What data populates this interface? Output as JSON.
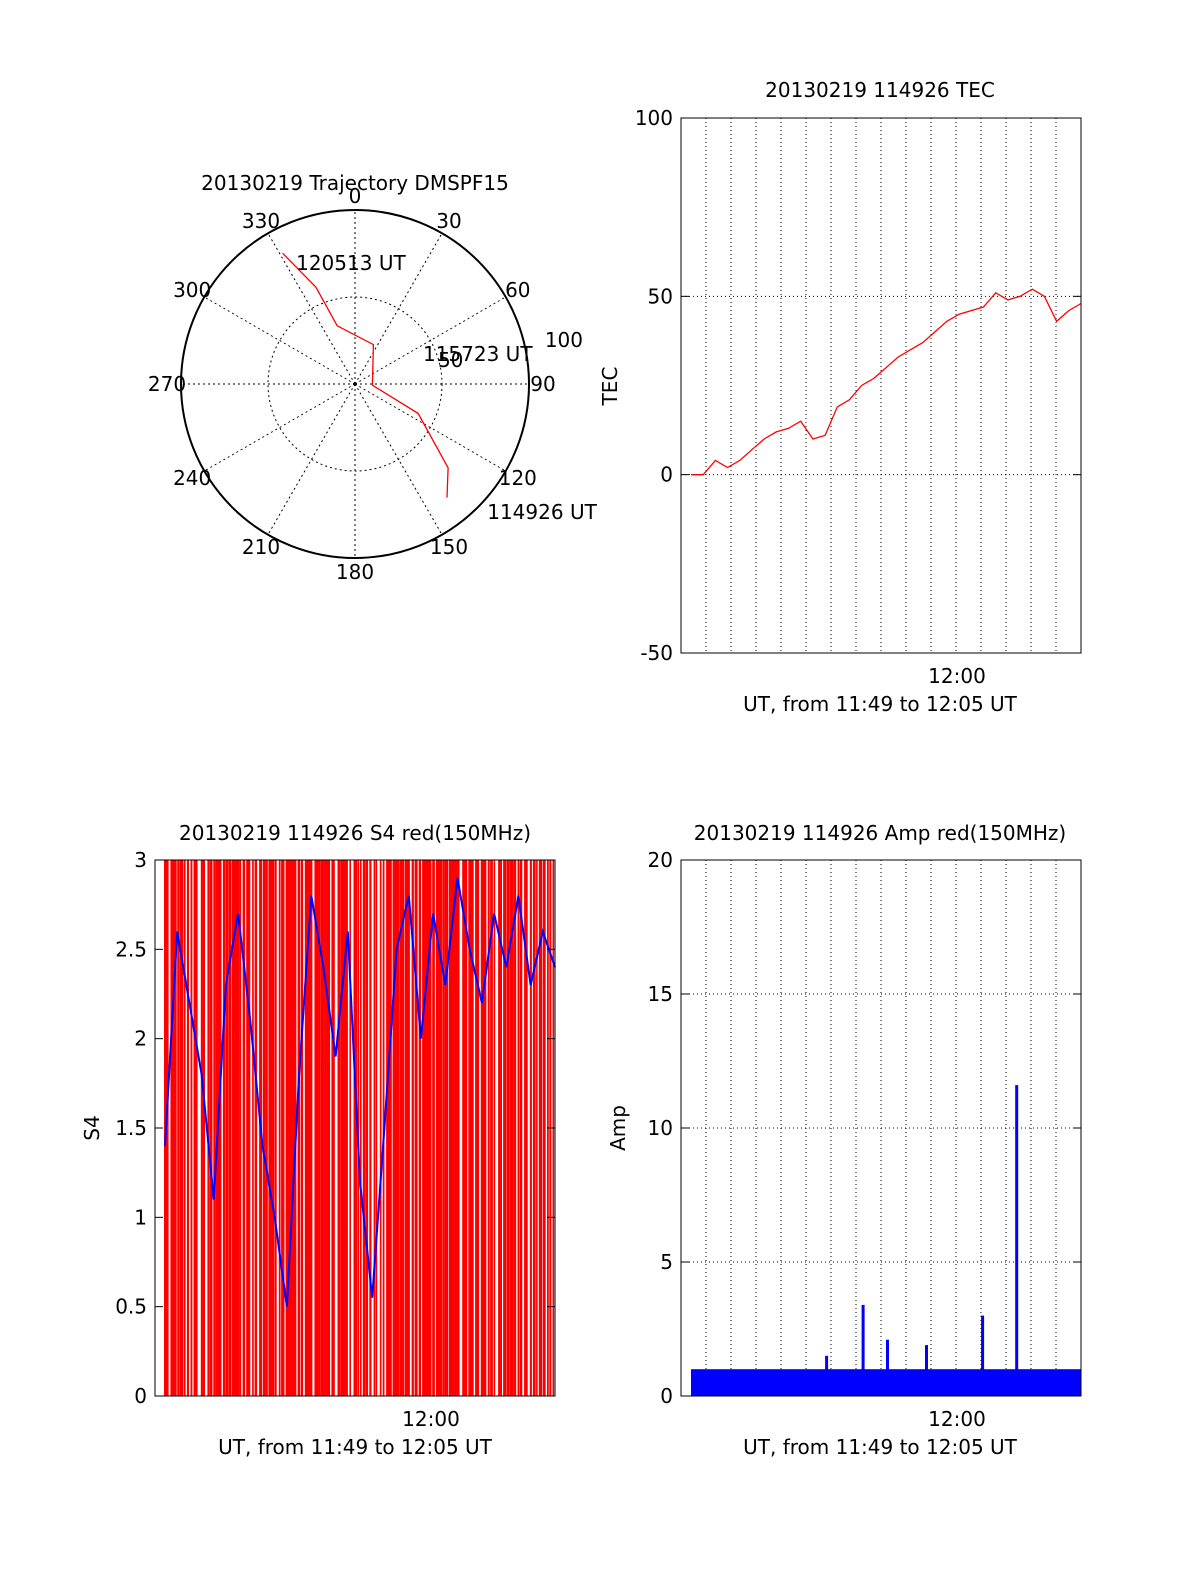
{
  "chart_data": [
    {
      "type": "polar",
      "title": "20130219 Trajectory DMSPF15",
      "angle_labels": [
        "0",
        "30",
        "60",
        "90",
        "120",
        "150",
        "180",
        "210",
        "240",
        "270",
        "300",
        "330"
      ],
      "radius_labels": [
        "50",
        "100"
      ],
      "rmax": 100,
      "rings": [
        50
      ],
      "trajectory": {
        "color": "#ff0000",
        "points": [
          {
            "az": 331,
            "r": 86
          },
          {
            "az": 338,
            "r": 60
          },
          {
            "az": 343,
            "r": 35
          },
          {
            "az": 25,
            "r": 25
          },
          {
            "az": 94,
            "r": 10
          },
          {
            "az": 115,
            "r": 40
          },
          {
            "az": 132,
            "r": 72
          },
          {
            "az": 141,
            "r": 84
          }
        ],
        "annotations": [
          {
            "text": "120513 UT",
            "az": 338,
            "r": 75
          },
          {
            "text": "115723 UT",
            "az": 69,
            "r": 48
          },
          {
            "text": "114926 UT",
            "az": 132,
            "r": 110
          }
        ]
      }
    },
    {
      "type": "line",
      "title": "20130219 114926 TEC",
      "xlabel": "UT, from 11:49 to 12:05 UT",
      "ylabel": "TEC",
      "xlim": [
        "11:49",
        "12:05"
      ],
      "ylim": [
        -50,
        100
      ],
      "yticks": [
        "100",
        "50",
        "0",
        "-50"
      ],
      "xtick_label": "12:00",
      "grid": true,
      "series": [
        {
          "color": "#ff0000",
          "x_minutes": [
            0,
            0.5,
            1,
            1.5,
            2,
            2.5,
            3,
            3.5,
            4,
            4.5,
            5,
            5.5,
            6,
            6.5,
            7,
            7.5,
            8,
            8.5,
            9,
            9.5,
            10,
            10.5,
            11,
            11.5,
            12,
            12.5,
            13,
            13.5,
            14,
            14.5,
            15,
            15.5,
            16
          ],
          "y": [
            0,
            0,
            4,
            2,
            4,
            7,
            10,
            12,
            13,
            15,
            10,
            11,
            19,
            21,
            25,
            27,
            30,
            33,
            35,
            37,
            40,
            43,
            45,
            46,
            47,
            51,
            49,
            50,
            52,
            50,
            43,
            46,
            48
          ]
        }
      ]
    },
    {
      "type": "line",
      "title": "20130219 114926 S4 red(150MHz)",
      "xlabel": "UT, from 11:49 to 12:05 UT",
      "ylabel": "S4",
      "xlim": [
        "11:49",
        "12:05"
      ],
      "ylim": [
        0,
        3
      ],
      "yticks": [
        "3",
        "2.5",
        "2",
        "1.5",
        "1",
        "0.5",
        "0"
      ],
      "xtick_label": "12:00",
      "series": [
        {
          "name": "",
          "color": "#0000ff",
          "x_minutes": [
            0,
            0.5,
            1,
            1.5,
            2,
            2.5,
            3,
            3.5,
            4,
            4.5,
            5,
            5.5,
            6,
            6.5,
            7,
            7.5,
            8,
            8.5,
            9,
            9.5,
            10,
            10.5,
            11,
            11.5,
            12,
            12.5,
            13,
            13.5,
            14,
            14.5,
            15,
            15.5,
            16
          ],
          "y": [
            1.4,
            2.6,
            2.2,
            1.8,
            1.1,
            2.3,
            2.7,
            2.1,
            1.4,
            1.0,
            0.5,
            1.8,
            2.8,
            2.4,
            1.9,
            2.6,
            1.2,
            0.55,
            1.5,
            2.5,
            2.8,
            2.0,
            2.7,
            2.3,
            2.9,
            2.5,
            2.2,
            2.7,
            2.4,
            2.8,
            2.3,
            2.6,
            2.4
          ]
        }
      ],
      "red_fill_note_count": 120
    },
    {
      "type": "line",
      "title": "20130219 114926 Amp red(150MHz)",
      "xlabel": "UT, from 11:49 to 12:05 UT",
      "ylabel": "Amp",
      "xlim": [
        "11:49",
        "12:05"
      ],
      "ylim": [
        0,
        20
      ],
      "yticks": [
        "20",
        "15",
        "10",
        "5",
        "0"
      ],
      "xtick_label": "12:00",
      "grid": true,
      "series": [
        {
          "color": "#0000ff",
          "baseline": 0.5,
          "spikes": [
            {
              "x_minute": 5.5,
              "y": 1.5
            },
            {
              "x_minute": 7,
              "y": 3.4
            },
            {
              "x_minute": 8,
              "y": 2.1
            },
            {
              "x_minute": 9.6,
              "y": 1.9
            },
            {
              "x_minute": 11.9,
              "y": 3.0
            },
            {
              "x_minute": 13.3,
              "y": 11.6
            }
          ]
        }
      ]
    }
  ]
}
